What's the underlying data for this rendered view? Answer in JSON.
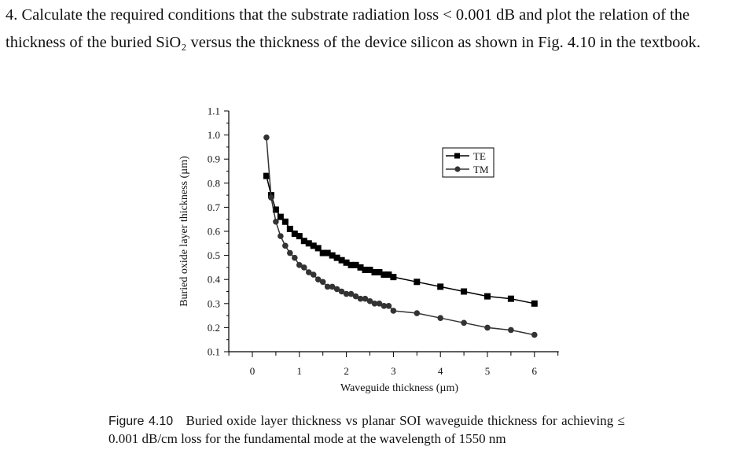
{
  "question": {
    "text": "4. Calculate the required conditions that the substrate radiation loss < 0.001 dB and plot the relation of the thickness of the buried SiO₂ versus the thickness of the device silicon as shown in Fig. 4.10 in the textbook."
  },
  "caption": {
    "label": "Figure 4.10",
    "text": "Buried oxide layer thickness vs planar SOI waveguide thickness for achieving ≤ 0.001 dB/cm loss for the fundamental mode at the wavelength of 1550 nm"
  },
  "chart_data": {
    "type": "line",
    "xlabel": "Waveguide thickness (µm)",
    "ylabel": "Buried oxide layer thickness (µm)",
    "xlim": [
      -0.5,
      6.5
    ],
    "ylim": [
      0.1,
      1.1
    ],
    "xticks": [
      "0",
      "1",
      "2",
      "3",
      "4",
      "5",
      "6"
    ],
    "yticks": [
      "0.1",
      "0.2",
      "0.3",
      "0.4",
      "0.5",
      "0.6",
      "0.7",
      "0.8",
      "0.9",
      "1.0",
      "1.1"
    ],
    "grid": false,
    "legend_position": "top-right",
    "x": [
      0.3,
      0.4,
      0.5,
      0.6,
      0.7,
      0.8,
      0.9,
      1.0,
      1.1,
      1.2,
      1.3,
      1.4,
      1.5,
      1.6,
      1.7,
      1.8,
      1.9,
      2.0,
      2.1,
      2.2,
      2.3,
      2.4,
      2.5,
      2.6,
      2.7,
      2.8,
      2.9,
      3.0,
      3.5,
      4.0,
      4.5,
      5.0,
      5.5,
      6.0
    ],
    "series": [
      {
        "name": "TE",
        "marker": "square",
        "color": "#000000",
        "values": [
          0.83,
          0.75,
          0.69,
          0.66,
          0.64,
          0.61,
          0.59,
          0.58,
          0.56,
          0.55,
          0.54,
          0.53,
          0.51,
          0.51,
          0.5,
          0.49,
          0.48,
          0.47,
          0.46,
          0.46,
          0.45,
          0.44,
          0.44,
          0.43,
          0.43,
          0.42,
          0.42,
          0.41,
          0.39,
          0.37,
          0.35,
          0.33,
          0.32,
          0.3
        ]
      },
      {
        "name": "TM",
        "marker": "circle",
        "color": "#333333",
        "values": [
          0.99,
          0.74,
          0.64,
          0.58,
          0.54,
          0.51,
          0.49,
          0.46,
          0.45,
          0.43,
          0.42,
          0.4,
          0.39,
          0.37,
          0.37,
          0.36,
          0.35,
          0.34,
          0.34,
          0.33,
          0.32,
          0.32,
          0.31,
          0.3,
          0.3,
          0.29,
          0.29,
          0.27,
          0.26,
          0.24,
          0.22,
          0.2,
          0.19,
          0.17
        ]
      }
    ]
  }
}
